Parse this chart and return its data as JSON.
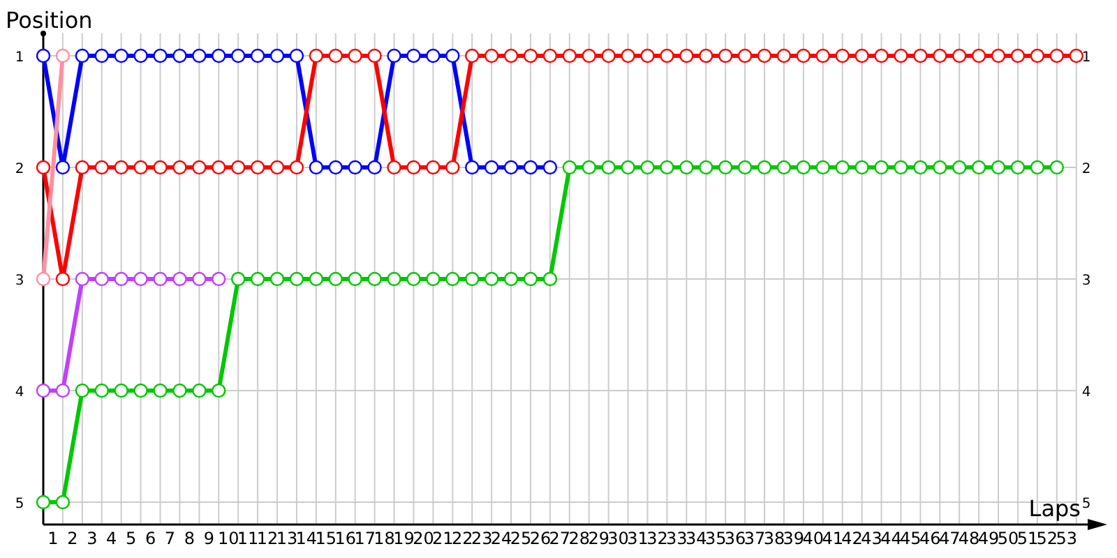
{
  "chart_data": {
    "type": "line",
    "xlabel": "Laps",
    "ylabel": "Position",
    "marker": "circle",
    "line_style": "solid",
    "grid": true,
    "x": [
      0,
      1,
      2,
      3,
      4,
      5,
      6,
      7,
      8,
      9,
      10,
      11,
      12,
      13,
      14,
      15,
      16,
      17,
      18,
      19,
      20,
      21,
      22,
      23,
      24,
      25,
      26,
      27,
      28,
      29,
      30,
      31,
      32,
      33,
      34,
      35,
      36,
      37,
      38,
      39,
      40,
      41,
      42,
      43,
      44,
      45,
      46,
      47,
      48,
      49,
      50,
      51,
      52,
      53
    ],
    "xlim": [
      0,
      54.3
    ],
    "xticks": [
      {
        "value": 0,
        "label": null
      },
      {
        "value": 0.5,
        "label": "1"
      },
      {
        "value": 1,
        "label": null
      },
      {
        "value": 1.5,
        "label": "2"
      },
      {
        "value": 2,
        "label": null
      },
      {
        "value": 2.5,
        "label": "3"
      },
      {
        "value": 3,
        "label": null
      },
      {
        "value": 3.5,
        "label": "4"
      },
      {
        "value": 4,
        "label": null
      },
      {
        "value": 4.5,
        "label": "5"
      },
      {
        "value": 5,
        "label": null
      },
      {
        "value": 5.5,
        "label": "6"
      },
      {
        "value": 6,
        "label": null
      },
      {
        "value": 6.5,
        "label": "7"
      },
      {
        "value": 7,
        "label": null
      },
      {
        "value": 7.5,
        "label": "8"
      },
      {
        "value": 8,
        "label": null
      },
      {
        "value": 8.5,
        "label": "9"
      },
      {
        "value": 9,
        "label": null
      },
      {
        "value": 9.5,
        "label": "10"
      },
      {
        "value": 10,
        "label": null
      },
      {
        "value": 10.5,
        "label": "11"
      },
      {
        "value": 11,
        "label": null
      },
      {
        "value": 11.5,
        "label": "12"
      },
      {
        "value": 12,
        "label": null
      },
      {
        "value": 12.5,
        "label": "13"
      },
      {
        "value": 13,
        "label": null
      },
      {
        "value": 13.5,
        "label": "14"
      },
      {
        "value": 14,
        "label": null
      },
      {
        "value": 14.5,
        "label": "15"
      },
      {
        "value": 15,
        "label": null
      },
      {
        "value": 15.5,
        "label": "16"
      },
      {
        "value": 16,
        "label": null
      },
      {
        "value": 16.5,
        "label": "17"
      },
      {
        "value": 17,
        "label": null
      },
      {
        "value": 17.5,
        "label": "18"
      },
      {
        "value": 18,
        "label": null
      },
      {
        "value": 18.5,
        "label": "19"
      },
      {
        "value": 19,
        "label": null
      },
      {
        "value": 19.5,
        "label": "20"
      },
      {
        "value": 20,
        "label": null
      },
      {
        "value": 20.5,
        "label": "21"
      },
      {
        "value": 21,
        "label": null
      },
      {
        "value": 21.5,
        "label": "22"
      },
      {
        "value": 22,
        "label": null
      },
      {
        "value": 22.5,
        "label": "23"
      },
      {
        "value": 23,
        "label": null
      },
      {
        "value": 23.5,
        "label": "24"
      },
      {
        "value": 24,
        "label": null
      },
      {
        "value": 24.5,
        "label": "25"
      },
      {
        "value": 25,
        "label": null
      },
      {
        "value": 25.5,
        "label": "26"
      },
      {
        "value": 26,
        "label": null
      },
      {
        "value": 26.5,
        "label": "27"
      },
      {
        "value": 27,
        "label": null
      },
      {
        "value": 27.5,
        "label": "28"
      },
      {
        "value": 28,
        "label": null
      },
      {
        "value": 28.5,
        "label": "29"
      },
      {
        "value": 29,
        "label": null
      },
      {
        "value": 29.5,
        "label": "30"
      },
      {
        "value": 30,
        "label": null
      },
      {
        "value": 30.5,
        "label": "31"
      },
      {
        "value": 31,
        "label": null
      },
      {
        "value": 31.5,
        "label": "32"
      },
      {
        "value": 32,
        "label": null
      },
      {
        "value": 32.5,
        "label": "33"
      },
      {
        "value": 33,
        "label": null
      },
      {
        "value": 33.5,
        "label": "34"
      },
      {
        "value": 34,
        "label": null
      },
      {
        "value": 34.5,
        "label": "35"
      },
      {
        "value": 35,
        "label": null
      },
      {
        "value": 35.5,
        "label": "36"
      },
      {
        "value": 36,
        "label": null
      },
      {
        "value": 36.5,
        "label": "37"
      },
      {
        "value": 37,
        "label": null
      },
      {
        "value": 37.5,
        "label": "38"
      },
      {
        "value": 38,
        "label": null
      },
      {
        "value": 38.5,
        "label": "39"
      },
      {
        "value": 39,
        "label": null
      },
      {
        "value": 39.5,
        "label": "40"
      },
      {
        "value": 40,
        "label": null
      },
      {
        "value": 40.5,
        "label": "41"
      },
      {
        "value": 41,
        "label": null
      },
      {
        "value": 41.5,
        "label": "42"
      },
      {
        "value": 42,
        "label": null
      },
      {
        "value": 42.5,
        "label": "43"
      },
      {
        "value": 43,
        "label": null
      },
      {
        "value": 43.5,
        "label": "44"
      },
      {
        "value": 44,
        "label": null
      },
      {
        "value": 44.5,
        "label": "45"
      },
      {
        "value": 45,
        "label": null
      },
      {
        "value": 45.5,
        "label": "46"
      },
      {
        "value": 46,
        "label": null
      },
      {
        "value": 46.5,
        "label": "47"
      },
      {
        "value": 47,
        "label": null
      },
      {
        "value": 47.5,
        "label": "48"
      },
      {
        "value": 48,
        "label": null
      },
      {
        "value": 48.5,
        "label": "49"
      },
      {
        "value": 49,
        "label": null
      },
      {
        "value": 49.5,
        "label": "50"
      },
      {
        "value": 50,
        "label": null
      },
      {
        "value": 50.5,
        "label": "51"
      },
      {
        "value": 51,
        "label": null
      },
      {
        "value": 51.5,
        "label": "52"
      },
      {
        "value": 52,
        "label": null
      },
      {
        "value": 52.5,
        "label": "53"
      },
      {
        "value": 53,
        "label": null
      }
    ],
    "ylim": [
      5.2,
      0.8
    ],
    "yticks": [
      1,
      2,
      3,
      4,
      5
    ],
    "y2lim": [
      5.2,
      0.8
    ],
    "y2ticks": [
      1,
      2,
      3,
      4,
      5
    ],
    "series": [
      {
        "color": "#0000ff",
        "values": [
          1,
          2,
          1,
          1,
          1,
          1,
          1,
          1,
          1,
          1,
          1,
          1,
          1,
          1,
          2,
          2,
          2,
          2,
          1,
          1,
          1,
          1,
          2,
          2,
          2,
          2,
          2,
          null,
          null,
          null,
          null,
          null,
          null,
          null,
          null,
          null,
          null,
          null,
          null,
          null,
          null,
          null,
          null,
          null,
          null,
          null,
          null,
          null,
          null,
          null,
          null,
          null,
          null,
          null
        ]
      },
      {
        "color": "#ff0000",
        "values": [
          2,
          3,
          2,
          2,
          2,
          2,
          2,
          2,
          2,
          2,
          2,
          2,
          2,
          2,
          1,
          1,
          1,
          1,
          2,
          2,
          2,
          2,
          1,
          1,
          1,
          1,
          1,
          1,
          1,
          1,
          1,
          1,
          1,
          1,
          1,
          1,
          1,
          1,
          1,
          1,
          1,
          1,
          1,
          1,
          1,
          1,
          1,
          1,
          1,
          1,
          1,
          1,
          1,
          1
        ]
      },
      {
        "color": "#ff90a0",
        "values": [
          3,
          1,
          null,
          null,
          null,
          null,
          null,
          null,
          null,
          null,
          null,
          null,
          null,
          null,
          null,
          null,
          null,
          null,
          null,
          null,
          null,
          null,
          null,
          null,
          null,
          null,
          null,
          null,
          null,
          null,
          null,
          null,
          null,
          null,
          null,
          null,
          null,
          null,
          null,
          null,
          null,
          null,
          null,
          null,
          null,
          null,
          null,
          null,
          null,
          null,
          null,
          null,
          null,
          null
        ]
      },
      {
        "color": "#c040ff",
        "values": [
          4,
          4,
          3,
          3,
          3,
          3,
          3,
          3,
          3,
          3,
          null,
          null,
          null,
          null,
          null,
          null,
          null,
          null,
          null,
          null,
          null,
          null,
          null,
          null,
          null,
          null,
          null,
          null,
          null,
          null,
          null,
          null,
          null,
          null,
          null,
          null,
          null,
          null,
          null,
          null,
          null,
          null,
          null,
          null,
          null,
          null,
          null,
          null,
          null,
          null,
          null,
          null,
          null,
          null
        ]
      },
      {
        "color": "#00c800",
        "values": [
          5,
          5,
          4,
          4,
          4,
          4,
          4,
          4,
          4,
          4,
          3,
          3,
          3,
          3,
          3,
          3,
          3,
          3,
          3,
          3,
          3,
          3,
          3,
          3,
          3,
          3,
          3,
          2,
          2,
          2,
          2,
          2,
          2,
          2,
          2,
          2,
          2,
          2,
          2,
          2,
          2,
          2,
          2,
          2,
          2,
          2,
          2,
          2,
          2,
          2,
          2,
          2,
          2,
          null
        ]
      }
    ]
  }
}
